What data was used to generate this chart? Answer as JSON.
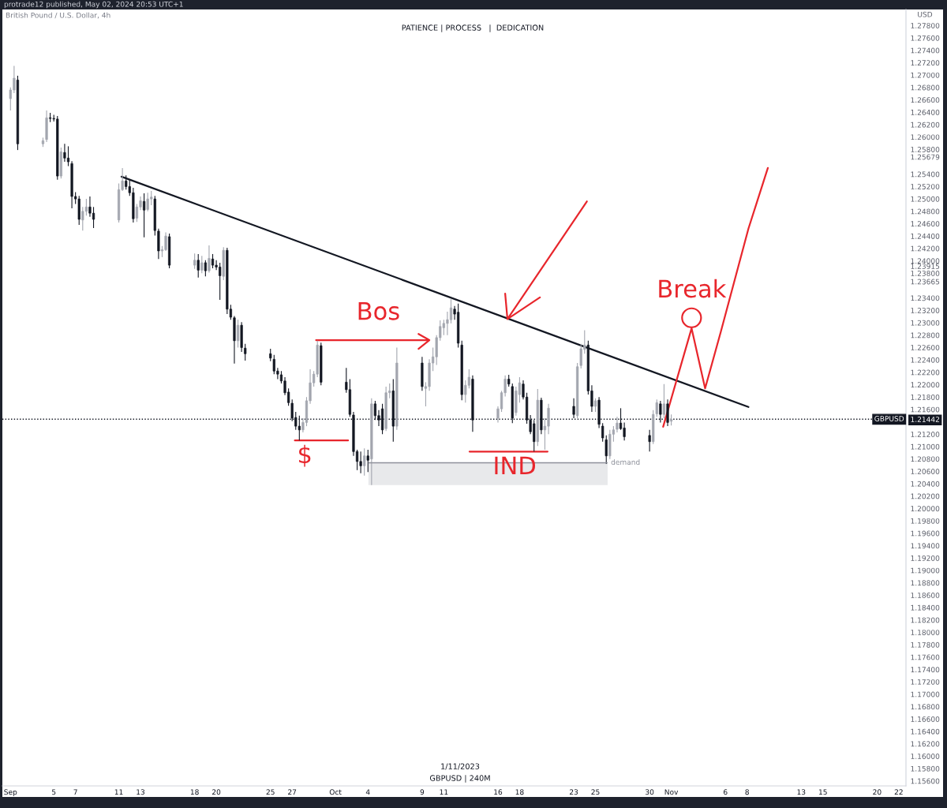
{
  "chart_data": {
    "type": "candlestick",
    "title": "British Pound / U.S. Dollar, 4h",
    "subtitle": "PATIENCE | PROCESS   |  DEDICATION",
    "ylabel": "USD",
    "annotations": [
      {
        "text": "Bos",
        "x": "2023-10-04T23:00",
        "y": 1.2272
      },
      {
        "text": "$",
        "x": "2023-09-28T04:00",
        "y": 1.211
      },
      {
        "text": "IND",
        "x": "2023-10-17T13:00",
        "y": 1.2092
      },
      {
        "text": "Break",
        "x": "2023-11-02T21:00",
        "y": 1.2308
      },
      "protrade12 published, May 02, 2024 20:53 UTC+1",
      "1/11/2023",
      "GBPUSD | 240M"
    ],
    "x": [
      "2023-09-01T00:00",
      "2023-09-01T08:00",
      "2023-09-01T16:00",
      "2023-09-04T00:00",
      "2023-09-04T08:00",
      "2023-09-04T16:00",
      "2023-09-05T00:00",
      "2023-09-05T08:00",
      "2023-09-05T16:00",
      "2023-09-06T00:00",
      "2023-09-06T08:00",
      "2023-09-06T16:00",
      "2023-09-07T00:00",
      "2023-09-07T08:00",
      "2023-09-07T16:00",
      "2023-09-08T00:00",
      "2023-09-08T08:00",
      "2023-09-08T16:00",
      "2023-09-11T00:00",
      "2023-09-11T08:00",
      "2023-09-11T16:00",
      "2023-09-12T00:00",
      "2023-09-12T08:00",
      "2023-09-12T16:00",
      "2023-09-13T00:00",
      "2023-09-13T08:00",
      "2023-09-13T16:00",
      "2023-09-14T00:00",
      "2023-09-14T08:00",
      "2023-09-14T16:00",
      "2023-09-15T00:00",
      "2023-09-15T08:00",
      "2023-09-15T16:00",
      "2023-09-18T00:00",
      "2023-09-18T08:00",
      "2023-09-18T16:00",
      "2023-09-19T00:00",
      "2023-09-19T08:00",
      "2023-09-19T16:00",
      "2023-09-20T00:00",
      "2023-09-20T08:00",
      "2023-09-20T16:00",
      "2023-09-21T00:00",
      "2023-09-21T08:00",
      "2023-09-21T16:00",
      "2023-09-22T00:00",
      "2023-09-22T08:00",
      "2023-09-22T16:00",
      "2023-09-25T00:00",
      "2023-09-25T08:00",
      "2023-09-25T16:00",
      "2023-09-26T00:00",
      "2023-09-26T08:00",
      "2023-09-26T16:00",
      "2023-09-27T00:00",
      "2023-09-27T08:00",
      "2023-09-27T16:00",
      "2023-09-28T00:00",
      "2023-09-28T08:00",
      "2023-09-28T16:00",
      "2023-09-29T00:00",
      "2023-09-29T08:00",
      "2023-09-29T16:00",
      "2023-10-02T00:00",
      "2023-10-02T08:00",
      "2023-10-02T16:00",
      "2023-10-03T00:00",
      "2023-10-03T08:00",
      "2023-10-03T16:00",
      "2023-10-04T00:00",
      "2023-10-04T08:00",
      "2023-10-04T16:00",
      "2023-10-05T00:00",
      "2023-10-05T08:00",
      "2023-10-05T16:00",
      "2023-10-06T00:00",
      "2023-10-06T08:00",
      "2023-10-06T16:00",
      "2023-10-09T00:00",
      "2023-10-09T08:00",
      "2023-10-09T16:00",
      "2023-10-10T00:00",
      "2023-10-10T08:00",
      "2023-10-10T16:00",
      "2023-10-11T00:00",
      "2023-10-11T08:00",
      "2023-10-11T16:00",
      "2023-10-12T00:00",
      "2023-10-12T08:00",
      "2023-10-12T16:00",
      "2023-10-13T00:00",
      "2023-10-13T08:00",
      "2023-10-13T16:00",
      "2023-10-16T00:00",
      "2023-10-16T08:00",
      "2023-10-16T16:00",
      "2023-10-17T00:00",
      "2023-10-17T08:00",
      "2023-10-17T16:00",
      "2023-10-18T00:00",
      "2023-10-18T08:00",
      "2023-10-18T16:00",
      "2023-10-19T00:00",
      "2023-10-19T08:00",
      "2023-10-19T16:00",
      "2023-10-20T00:00",
      "2023-10-20T08:00",
      "2023-10-20T16:00",
      "2023-10-23T00:00",
      "2023-10-23T08:00",
      "2023-10-23T16:00",
      "2023-10-24T00:00",
      "2023-10-24T08:00",
      "2023-10-24T16:00",
      "2023-10-25T00:00",
      "2023-10-25T08:00",
      "2023-10-25T16:00",
      "2023-10-26T00:00",
      "2023-10-26T08:00",
      "2023-10-26T16:00",
      "2023-10-27T00:00",
      "2023-10-27T08:00",
      "2023-10-27T16:00",
      "2023-10-30T00:00",
      "2023-10-30T08:00",
      "2023-10-30T16:00",
      "2023-10-31T00:00",
      "2023-10-31T08:00",
      "2023-10-31T16:00",
      "2023-11-01T00:00"
    ],
    "ohlc": [
      [
        1.2662,
        1.268,
        1.2643,
        1.2676
      ],
      [
        1.2676,
        1.2715,
        1.2671,
        1.2695
      ],
      [
        1.2692,
        1.2699,
        1.2579,
        1.2589
      ],
      [
        1.2589,
        1.2599,
        1.2584,
        1.2594
      ],
      [
        1.2596,
        1.2643,
        1.2592,
        1.2631
      ],
      [
        1.2631,
        1.2639,
        1.2624,
        1.263
      ],
      [
        1.263,
        1.2636,
        1.2625,
        1.2629
      ],
      [
        1.2629,
        1.2634,
        1.2531,
        1.2537
      ],
      [
        1.2537,
        1.2583,
        1.2533,
        1.2576
      ],
      [
        1.2575,
        1.2589,
        1.256,
        1.2566
      ],
      [
        1.2566,
        1.2585,
        1.2553,
        1.256
      ],
      [
        1.2557,
        1.2561,
        1.2485,
        1.2504
      ],
      [
        1.2504,
        1.2511,
        1.2492,
        1.25
      ],
      [
        1.25,
        1.2505,
        1.2458,
        1.2467
      ],
      [
        1.2466,
        1.2487,
        1.2449,
        1.248
      ],
      [
        1.248,
        1.25,
        1.2473,
        1.2487
      ],
      [
        1.2487,
        1.2504,
        1.2471,
        1.2477
      ],
      [
        1.2477,
        1.2487,
        1.2453,
        1.2467
      ],
      [
        1.2466,
        1.2525,
        1.2462,
        1.2515
      ],
      [
        1.2515,
        1.255,
        1.2513,
        1.2529
      ],
      [
        1.2529,
        1.2538,
        1.2515,
        1.252
      ],
      [
        1.252,
        1.2531,
        1.2505,
        1.251
      ],
      [
        1.251,
        1.2518,
        1.2462,
        1.2468
      ],
      [
        1.2469,
        1.2492,
        1.2463,
        1.2487
      ],
      [
        1.2487,
        1.2504,
        1.2482,
        1.2497
      ],
      [
        1.2496,
        1.2509,
        1.2438,
        1.2482
      ],
      [
        1.2483,
        1.251,
        1.248,
        1.25
      ],
      [
        1.25,
        1.2513,
        1.249,
        1.2503
      ],
      [
        1.25,
        1.2505,
        1.2441,
        1.2449
      ],
      [
        1.2448,
        1.2452,
        1.2403,
        1.2416
      ],
      [
        1.2416,
        1.2424,
        1.2406,
        1.2418
      ],
      [
        1.2418,
        1.2446,
        1.2416,
        1.244
      ],
      [
        1.2439,
        1.2444,
        1.2388,
        1.2393
      ],
      [
        1.2393,
        1.2412,
        1.2387,
        1.2401
      ],
      [
        1.2401,
        1.2411,
        1.2373,
        1.2385
      ],
      [
        1.2385,
        1.2408,
        1.238,
        1.2397
      ],
      [
        1.2397,
        1.2401,
        1.2375,
        1.2384
      ],
      [
        1.2384,
        1.2425,
        1.2381,
        1.2404
      ],
      [
        1.2403,
        1.2411,
        1.2388,
        1.2393
      ],
      [
        1.2393,
        1.2401,
        1.2385,
        1.239
      ],
      [
        1.239,
        1.2397,
        1.2337,
        1.2376
      ],
      [
        1.2375,
        1.2422,
        1.2369,
        1.2417
      ],
      [
        1.2417,
        1.2421,
        1.2314,
        1.2322
      ],
      [
        1.2322,
        1.2329,
        1.2305,
        1.2309
      ],
      [
        1.2308,
        1.2311,
        1.2234,
        1.2271
      ],
      [
        1.2271,
        1.2305,
        1.226,
        1.2296
      ],
      [
        1.2296,
        1.2301,
        1.2253,
        1.226
      ],
      [
        1.2259,
        1.2266,
        1.2239,
        1.225
      ],
      [
        1.225,
        1.2258,
        1.2238,
        1.2243
      ],
      [
        1.2241,
        1.2248,
        1.2217,
        1.2222
      ],
      [
        1.2222,
        1.2227,
        1.2209,
        1.2217
      ],
      [
        1.2216,
        1.2222,
        1.2202,
        1.2206
      ],
      [
        1.2206,
        1.2212,
        1.2183,
        1.2187
      ],
      [
        1.2188,
        1.2194,
        1.2166,
        1.2171
      ],
      [
        1.217,
        1.2176,
        1.2141,
        1.2146
      ],
      [
        1.2147,
        1.2156,
        1.2127,
        1.2133
      ],
      [
        1.2133,
        1.215,
        1.211,
        1.2127
      ],
      [
        1.2127,
        1.2146,
        1.2123,
        1.2139
      ],
      [
        1.2139,
        1.218,
        1.2133,
        1.2174
      ],
      [
        1.2174,
        1.2225,
        1.2169,
        1.2203
      ],
      [
        1.2203,
        1.2222,
        1.2197,
        1.2217
      ],
      [
        1.2217,
        1.2271,
        1.2212,
        1.2264
      ],
      [
        1.2263,
        1.2268,
        1.2199,
        1.2204
      ],
      [
        1.2204,
        1.2227,
        1.2187,
        1.2192
      ],
      [
        1.2192,
        1.2209,
        1.2148,
        1.2152
      ],
      [
        1.2151,
        1.2156,
        1.2085,
        1.2092
      ],
      [
        1.2092,
        1.2095,
        1.2062,
        1.2076
      ],
      [
        1.2076,
        1.2092,
        1.2057,
        1.2069
      ],
      [
        1.2069,
        1.2097,
        1.2053,
        1.2085
      ],
      [
        1.2085,
        1.2095,
        1.2059,
        1.2078
      ],
      [
        1.208,
        1.2178,
        1.2038,
        1.2169
      ],
      [
        1.2169,
        1.2174,
        1.2143,
        1.215
      ],
      [
        1.215,
        1.2159,
        1.2133,
        1.2143
      ],
      [
        1.2161,
        1.2169,
        1.212,
        1.2127
      ],
      [
        1.2129,
        1.2197,
        1.2125,
        1.2187
      ],
      [
        1.2187,
        1.2202,
        1.2178,
        1.219
      ],
      [
        1.219,
        1.2209,
        1.2108,
        1.2133
      ],
      [
        1.2133,
        1.226,
        1.2127,
        1.2235
      ],
      [
        1.2235,
        1.2245,
        1.219,
        1.2197
      ],
      [
        1.2194,
        1.2204,
        1.2165,
        1.2197
      ],
      [
        1.2197,
        1.2241,
        1.219,
        1.2235
      ],
      [
        1.2235,
        1.226,
        1.2222,
        1.2245
      ],
      [
        1.2245,
        1.228,
        1.2232,
        1.2276
      ],
      [
        1.2276,
        1.2304,
        1.2271,
        1.2294
      ],
      [
        1.2292,
        1.2305,
        1.228,
        1.2299
      ],
      [
        1.2299,
        1.2318,
        1.228,
        1.2305
      ],
      [
        1.2305,
        1.2339,
        1.2299,
        1.2324
      ],
      [
        1.2322,
        1.2327,
        1.2305,
        1.2314
      ],
      [
        1.2317,
        1.2331,
        1.226,
        1.2267
      ],
      [
        1.2264,
        1.2271,
        1.2175,
        1.2184
      ],
      [
        1.2184,
        1.2207,
        1.2171,
        1.2199
      ],
      [
        1.2199,
        1.2225,
        1.2194,
        1.2212
      ],
      [
        1.2209,
        1.2215,
        1.2124,
        1.2143
      ],
      [
        1.2146,
        1.2165,
        1.2139,
        1.2161
      ],
      [
        1.2161,
        1.219,
        1.2156,
        1.2187
      ],
      [
        1.2187,
        1.2215,
        1.2181,
        1.2209
      ],
      [
        1.2209,
        1.2216,
        1.2197,
        1.2201
      ],
      [
        1.2197,
        1.2202,
        1.2138,
        1.2146
      ],
      [
        1.2155,
        1.2197,
        1.215,
        1.219
      ],
      [
        1.2184,
        1.2212,
        1.2171,
        1.2203
      ],
      [
        1.2201,
        1.2207,
        1.2176,
        1.218
      ],
      [
        1.218,
        1.2187,
        1.2137,
        1.2143
      ],
      [
        1.2143,
        1.2151,
        1.212,
        1.2124
      ],
      [
        1.2137,
        1.2143,
        1.2092,
        1.2108
      ],
      [
        1.2108,
        1.2193,
        1.2101,
        1.2175
      ],
      [
        1.2175,
        1.2179,
        1.212,
        1.2127
      ],
      [
        1.2127,
        1.2146,
        1.2095,
        1.2133
      ],
      [
        1.2133,
        1.2169,
        1.212,
        1.2162
      ],
      [
        1.2165,
        1.2178,
        1.2146,
        1.2152
      ],
      [
        1.215,
        1.2235,
        1.2146,
        1.2229
      ],
      [
        1.2231,
        1.2266,
        1.2226,
        1.2258
      ],
      [
        1.2257,
        1.2288,
        1.225,
        1.2264
      ],
      [
        1.2264,
        1.2271,
        1.2184,
        1.219
      ],
      [
        1.219,
        1.2199,
        1.2156,
        1.2165
      ],
      [
        1.2165,
        1.2178,
        1.2156,
        1.2174
      ],
      [
        1.2175,
        1.218,
        1.213,
        1.2136
      ],
      [
        1.2133,
        1.2138,
        1.2108,
        1.2114
      ],
      [
        1.2111,
        1.2118,
        1.2072,
        1.2085
      ],
      [
        1.2085,
        1.2127,
        1.208,
        1.212
      ],
      [
        1.212,
        1.2133,
        1.2108,
        1.2127
      ],
      [
        1.2128,
        1.2148,
        1.2123,
        1.2138
      ],
      [
        1.2138,
        1.2162,
        1.2127,
        1.2129
      ],
      [
        1.213,
        1.2139,
        1.211,
        1.2116
      ],
      [
        1.2118,
        1.2127,
        1.2092,
        1.2108
      ],
      [
        1.2108,
        1.2159,
        1.2104,
        1.2152
      ],
      [
        1.2153,
        1.2176,
        1.2148,
        1.2171
      ],
      [
        1.2169,
        1.2174,
        1.2139,
        1.2152
      ],
      [
        1.2152,
        1.2201,
        1.2146,
        1.2169
      ],
      [
        1.2169,
        1.2176,
        1.2133,
        1.2139
      ],
      [
        1.2141,
        1.2152,
        1.2134,
        1.2144
      ]
    ],
    "colors": [
      "#a3a6af",
      "#a3a6af",
      "#131722",
      "#a3a6af",
      "#a3a6af",
      "#131722",
      "#131722",
      "#131722",
      "#a3a6af",
      "#131722",
      "#131722",
      "#131722",
      "#131722",
      "#131722",
      "#a3a6af",
      "#a3a6af",
      "#131722",
      "#131722",
      "#a3a6af",
      "#a3a6af",
      "#131722",
      "#131722",
      "#131722",
      "#a3a6af",
      "#a3a6af",
      "#131722",
      "#a3a6af",
      "#a3a6af",
      "#131722",
      "#131722",
      "#a3a6af",
      "#a3a6af",
      "#131722",
      "#a3a6af",
      "#131722",
      "#a3a6af",
      "#131722",
      "#a3a6af",
      "#131722",
      "#131722",
      "#131722",
      "#a3a6af",
      "#131722",
      "#131722",
      "#131722",
      "#a3a6af",
      "#131722",
      "#131722",
      "#131722",
      "#131722",
      "#131722",
      "#131722",
      "#131722",
      "#131722",
      "#131722",
      "#131722",
      "#131722",
      "#a3a6af",
      "#a3a6af",
      "#a3a6af",
      "#a3a6af",
      "#a3a6af",
      "#131722",
      "#131722",
      "#131722",
      "#131722",
      "#131722",
      "#131722",
      "#a3a6af",
      "#131722",
      "#a3a6af",
      "#131722",
      "#131722",
      "#131722",
      "#a3a6af",
      "#a3a6af",
      "#131722",
      "#a3a6af",
      "#131722",
      "#a3a6af",
      "#a3a6af",
      "#a3a6af",
      "#a3a6af",
      "#a3a6af",
      "#a3a6af",
      "#a3a6af",
      "#a3a6af",
      "#131722",
      "#131722",
      "#131722",
      "#a3a6af",
      "#a3a6af",
      "#131722",
      "#a3a6af",
      "#a3a6af",
      "#a3a6af",
      "#131722",
      "#131722",
      "#a3a6af",
      "#a3a6af",
      "#131722",
      "#131722",
      "#131722",
      "#131722",
      "#a3a6af",
      "#131722",
      "#a3a6af",
      "#a3a6af",
      "#131722",
      "#a3a6af",
      "#a3a6af",
      "#a3a6af",
      "#131722",
      "#131722",
      "#a3a6af",
      "#131722",
      "#131722",
      "#131722",
      "#a3a6af",
      "#a3a6af",
      "#a3a6af",
      "#131722",
      "#131722",
      "#131722",
      "#a3a6af",
      "#a3a6af",
      "#131722",
      "#a3a6af",
      "#131722",
      "#a3a6af"
    ],
    "series": [
      {
        "type": "line",
        "name": "demand",
        "color": "#8e919b",
        "x": [
          "2023-10-04T01:00",
          "2023-10-26T03:00"
        ],
        "values": [
          1.2074,
          1.2074
        ],
        "lower": [
          1.2038,
          1.2038
        ],
        "upper": [
          1.2074,
          1.2074
        ]
      },
      {
        "type": "line",
        "color": "#131722",
        "x": [
          "2023-09-11T06:00",
          "2023-11-08T03:00"
        ],
        "values": [
          1.2536,
          1.2164
        ]
      },
      {
        "type": "line",
        "color": "#e8262c",
        "x": [
          "2023-09-27T06:00",
          "2023-10-02T04:00"
        ],
        "values": [
          1.211,
          1.211
        ]
      },
      {
        "type": "line",
        "color": "#e8262c",
        "x": [
          "2023-09-29T05:00",
          "2023-10-09T16:00",
          "2023-10-08T16:00",
          "2023-10-09T16:00",
          "2023-10-08T16:00"
        ],
        "values": [
          1.2272,
          1.2272,
          1.2282,
          1.2272,
          1.2258
        ]
      },
      {
        "type": "line",
        "color": "#e8262c",
        "x": [
          "2023-10-24T05:00",
          "2023-10-16T21:00",
          "2023-10-16T16:00",
          "2023-10-16T21:00",
          "2023-10-19T21:00"
        ],
        "values": [
          1.2496,
          1.2306,
          1.2347,
          1.2306,
          1.2341
        ]
      },
      {
        "type": "line",
        "color": "#e8262c",
        "x": [
          "2023-10-13T09:00",
          "2023-10-20T14:00"
        ],
        "values": [
          1.2092,
          1.2092
        ]
      },
      {
        "type": "line",
        "color": "#e8262c",
        "x": [
          "2023-10-31T06:00",
          "2023-11-02T21:00",
          "2023-11-04T03:00",
          "2023-11-05T14:00",
          "2023-11-08T03:00",
          "2023-11-09T22:00"
        ],
        "values": [
          1.2132,
          1.2291,
          1.2194,
          1.2286,
          1.2452,
          1.255
        ]
      },
      {
        "type": "scatter",
        "color": "#e8262c",
        "marker": "circle",
        "x": [
          "2023-11-02T21:00"
        ],
        "values": [
          1.2308
        ]
      }
    ],
    "ref_lines": [
      {
        "axis": "y",
        "value": 1.21442,
        "label": "GBPUSD",
        "color": "#131722",
        "line_style": "dotted"
      }
    ],
    "xlim": [
      "2023-08-31T06:00",
      "2023-11-22T16:00"
    ],
    "ylim": [
      1.1552,
      1.2806
    ],
    "xticks": [
      {
        "value": "2023-09-01",
        "label": "Sep"
      },
      {
        "value": "2023-09-05",
        "label": "5"
      },
      {
        "value": "2023-09-07",
        "label": "7"
      },
      {
        "value": "2023-09-11",
        "label": "11"
      },
      {
        "value": "2023-09-13",
        "label": "13"
      },
      {
        "value": "2023-09-18",
        "label": "18"
      },
      {
        "value": "2023-09-20",
        "label": "20"
      },
      {
        "value": "2023-09-25",
        "label": "25"
      },
      {
        "value": "2023-09-27",
        "label": "27"
      },
      {
        "value": "2023-10-01",
        "label": "Oct"
      },
      {
        "value": "2023-10-04",
        "label": "4"
      },
      {
        "value": "2023-10-09",
        "label": "9"
      },
      {
        "value": "2023-10-11",
        "label": "11"
      },
      {
        "value": "2023-10-16",
        "label": "16"
      },
      {
        "value": "2023-10-18",
        "label": "18"
      },
      {
        "value": "2023-10-23",
        "label": "23"
      },
      {
        "value": "2023-10-25",
        "label": "25"
      },
      {
        "value": "2023-10-30",
        "label": "30"
      },
      {
        "value": "2023-11-01",
        "label": "Nov"
      },
      {
        "value": "2023-11-06",
        "label": "6"
      },
      {
        "value": "2023-11-08",
        "label": "8"
      },
      {
        "value": "2023-11-13",
        "label": "13"
      },
      {
        "value": "2023-11-15",
        "label": "15"
      },
      {
        "value": "2023-11-20",
        "label": "20"
      },
      {
        "value": "2023-11-22",
        "label": "22"
      }
    ],
    "yticks": [
      {
        "value": 1.156,
        "label": "1.15600"
      },
      {
        "value": 1.158,
        "label": "1.15800"
      },
      {
        "value": 1.16,
        "label": "1.16000"
      },
      {
        "value": 1.162,
        "label": "1.16200"
      },
      {
        "value": 1.164,
        "label": "1.16400"
      },
      {
        "value": 1.166,
        "label": "1.16600"
      },
      {
        "value": 1.168,
        "label": "1.16800"
      },
      {
        "value": 1.17,
        "label": "1.17000"
      },
      {
        "value": 1.172,
        "label": "1.17200"
      },
      {
        "value": 1.174,
        "label": "1.17400"
      },
      {
        "value": 1.176,
        "label": "1.17600"
      },
      {
        "value": 1.178,
        "label": "1.17800"
      },
      {
        "value": 1.18,
        "label": "1.18000"
      },
      {
        "value": 1.182,
        "label": "1.18200"
      },
      {
        "value": 1.184,
        "label": "1.18400"
      },
      {
        "value": 1.186,
        "label": "1.18600"
      },
      {
        "value": 1.188,
        "label": "1.18800"
      },
      {
        "value": 1.19,
        "label": "1.19000"
      },
      {
        "value": 1.192,
        "label": "1.19200"
      },
      {
        "value": 1.194,
        "label": "1.19400"
      },
      {
        "value": 1.196,
        "label": "1.19600"
      },
      {
        "value": 1.198,
        "label": "1.19800"
      },
      {
        "value": 1.2,
        "label": "1.20000"
      },
      {
        "value": 1.202,
        "label": "1.20200"
      },
      {
        "value": 1.204,
        "label": "1.20400"
      },
      {
        "value": 1.206,
        "label": "1.20600"
      },
      {
        "value": 1.208,
        "label": "1.20800"
      },
      {
        "value": 1.21,
        "label": "1.21000"
      },
      {
        "value": 1.212,
        "label": "1.21200"
      },
      {
        "value": 1.21442,
        "label": "1.21442"
      },
      {
        "value": 1.216,
        "label": "1.21600"
      },
      {
        "value": 1.218,
        "label": "1.21800"
      },
      {
        "value": 1.22,
        "label": "1.22000"
      },
      {
        "value": 1.222,
        "label": "1.22200"
      },
      {
        "value": 1.224,
        "label": "1.22400"
      },
      {
        "value": 1.226,
        "label": "1.22600"
      },
      {
        "value": 1.228,
        "label": "1.22800"
      },
      {
        "value": 1.23,
        "label": "1.23000"
      },
      {
        "value": 1.232,
        "label": "1.23200"
      },
      {
        "value": 1.234,
        "label": "1.23400"
      },
      {
        "value": 1.23665,
        "label": "1.23665"
      },
      {
        "value": 1.238,
        "label": "1.23800"
      },
      {
        "value": 1.23915,
        "label": "1.23915"
      },
      {
        "value": 1.24,
        "label": "1.24000"
      },
      {
        "value": 1.242,
        "label": "1.24200"
      },
      {
        "value": 1.244,
        "label": "1.24400"
      },
      {
        "value": 1.246,
        "label": "1.24600"
      },
      {
        "value": 1.248,
        "label": "1.24800"
      },
      {
        "value": 1.25,
        "label": "1.25000"
      },
      {
        "value": 1.252,
        "label": "1.25200"
      },
      {
        "value": 1.254,
        "label": "1.25400"
      },
      {
        "value": 1.25679,
        "label": "1.25679"
      },
      {
        "value": 1.258,
        "label": "1.25800"
      },
      {
        "value": 1.26,
        "label": "1.26000"
      },
      {
        "value": 1.262,
        "label": "1.26200"
      },
      {
        "value": 1.264,
        "label": "1.26400"
      },
      {
        "value": 1.266,
        "label": "1.26600"
      },
      {
        "value": 1.268,
        "label": "1.26800"
      },
      {
        "value": 1.27,
        "label": "1.27000"
      },
      {
        "value": 1.272,
        "label": "1.27200"
      },
      {
        "value": 1.274,
        "label": "1.27400"
      },
      {
        "value": 1.276,
        "label": "1.27600"
      },
      {
        "value": 1.278,
        "label": "1.27800"
      }
    ]
  }
}
